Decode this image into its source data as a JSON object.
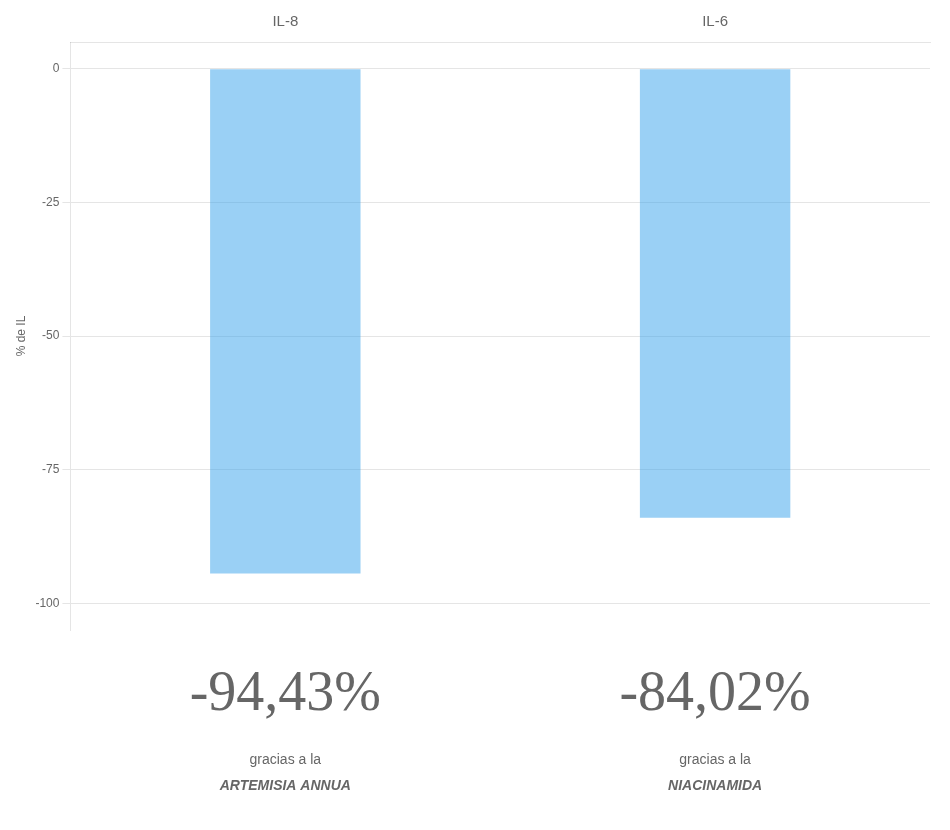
{
  "chart_data": {
    "type": "bar",
    "categories": [
      "IL-8",
      "IL-6"
    ],
    "values": [
      -94.43,
      -84.02
    ],
    "data_labels": true,
    "value_labels": [
      "-94,43%",
      "-84,02%"
    ],
    "ylabel": "% de IL",
    "ylim": [
      -105,
      5
    ],
    "yticks": [
      0,
      -25,
      -50,
      -75,
      -100
    ],
    "grid": true,
    "annotations": [
      [
        "gracias a la",
        "ARTEMISIA ANNUA"
      ],
      [
        "gracias a la",
        "NIACINAMIDA"
      ]
    ]
  }
}
